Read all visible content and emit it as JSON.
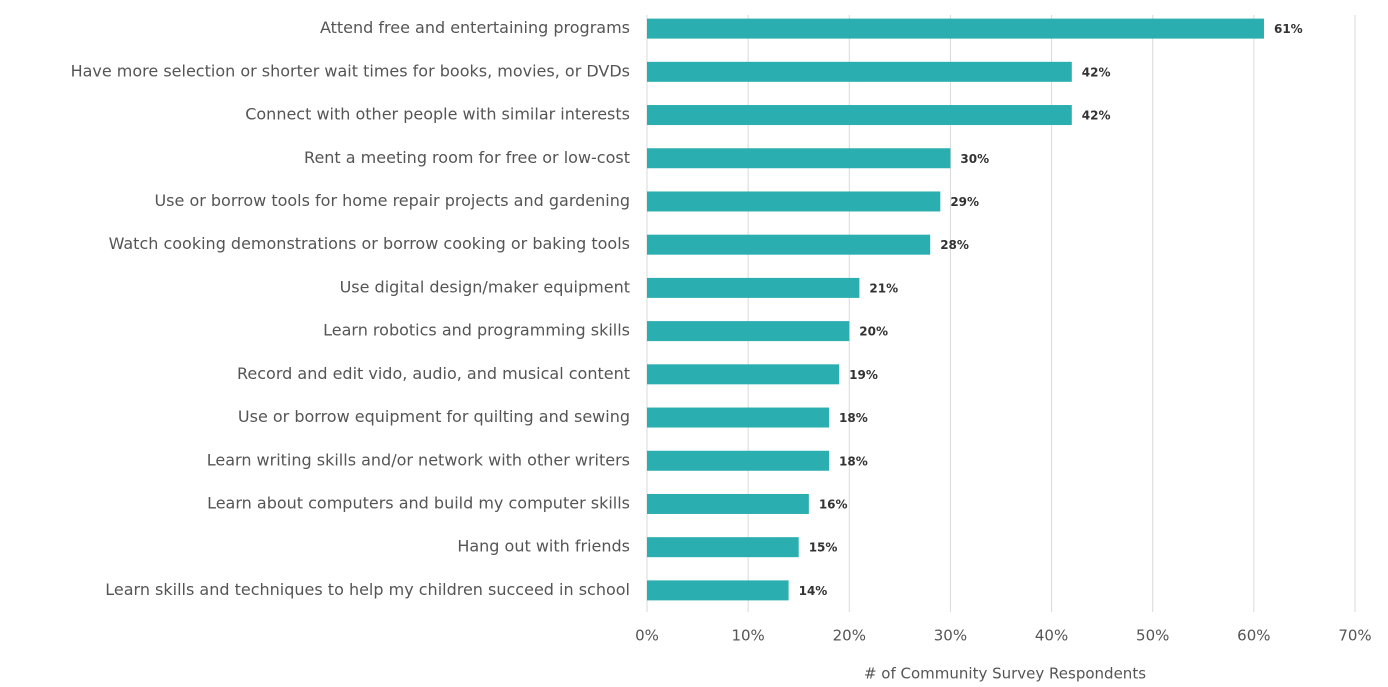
{
  "chart_data": {
    "type": "bar",
    "orientation": "horizontal",
    "x_label": "# of Community Survey Respondents",
    "categories": [
      "Attend free and entertaining programs",
      "Have more selection or shorter wait times for books, movies, or DVDs",
      "Connect with other people with similar interests",
      "Rent a meeting room for free or low-cost",
      "Use or borrow tools for home repair projects and gardening",
      "Watch cooking demonstrations or borrow cooking or baking tools",
      "Use digital design/maker equipment",
      "Learn robotics and programming skills",
      "Record and edit vido, audio, and musical content",
      "Use or borrow equipment for quilting and sewing",
      "Learn writing skills and/or network with other writers",
      "Learn about computers and build my computer skills",
      "Hang out with friends",
      "Learn skills and techniques to help my children succeed in school"
    ],
    "values": [
      61,
      42,
      42,
      30,
      29,
      28,
      21,
      20,
      19,
      18,
      18,
      16,
      15,
      14
    ],
    "value_labels": [
      "61%",
      "42%",
      "42%",
      "30%",
      "29%",
      "28%",
      "21%",
      "20%",
      "19%",
      "18%",
      "18%",
      "16%",
      "15%",
      "14%"
    ],
    "color": "#2aaeb0",
    "xlim": [
      0,
      70
    ],
    "xticks": [
      {
        "value": 0,
        "label": "0%"
      },
      {
        "value": 10,
        "label": "10%"
      },
      {
        "value": 20,
        "label": "20%"
      },
      {
        "value": 30,
        "label": "30%"
      },
      {
        "value": 40,
        "label": "40%"
      },
      {
        "value": 50,
        "label": "50%"
      },
      {
        "value": 60,
        "label": "60%"
      },
      {
        "value": 70,
        "label": "70%"
      }
    ],
    "grid": true
  }
}
